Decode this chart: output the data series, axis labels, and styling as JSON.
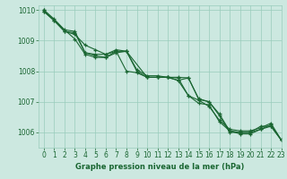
{
  "title": "Graphe pression niveau de la mer (hPa)",
  "xlim": [
    -0.5,
    23
  ],
  "ylim": [
    1005.5,
    1010.15
  ],
  "yticks": [
    1006,
    1007,
    1008,
    1009,
    1010
  ],
  "xticks": [
    0,
    1,
    2,
    3,
    4,
    5,
    6,
    7,
    8,
    9,
    10,
    11,
    12,
    13,
    14,
    15,
    16,
    17,
    18,
    19,
    20,
    21,
    22,
    23
  ],
  "bg_color": "#cce8e0",
  "grid_color": "#99ccbb",
  "line_color": "#1a6632",
  "line1_x": [
    0,
    1,
    2,
    3,
    4,
    5,
    6,
    7,
    8,
    9,
    10,
    11,
    12,
    13,
    14,
    15,
    16,
    17,
    18,
    19,
    20,
    21,
    22,
    23
  ],
  "line1_y": [
    1009.95,
    1009.65,
    1009.3,
    1009.25,
    1008.6,
    1008.5,
    1008.45,
    1008.65,
    1008.65,
    1008.0,
    1007.8,
    1007.8,
    1007.8,
    1007.8,
    1007.78,
    1007.1,
    1007.0,
    1006.6,
    1006.05,
    1006.0,
    1006.0,
    1006.2,
    1006.2,
    1005.75
  ],
  "line2_x": [
    0,
    1,
    2,
    3,
    4,
    5,
    6,
    7,
    8,
    9,
    10,
    11,
    12,
    13,
    14,
    15,
    16,
    17,
    18,
    19,
    20,
    21,
    22,
    23
  ],
  "line2_y": [
    1010.0,
    1009.65,
    1009.3,
    1009.2,
    1008.85,
    1008.7,
    1008.55,
    1008.65,
    1008.0,
    1007.95,
    1007.8,
    1007.8,
    1007.8,
    1007.7,
    1007.2,
    1006.95,
    1006.9,
    1006.35,
    1006.05,
    1005.95,
    1005.95,
    1006.1,
    1006.2,
    1005.75
  ],
  "line3_x": [
    0,
    1,
    2,
    3,
    4,
    5,
    6,
    7,
    8,
    9,
    10,
    11,
    12,
    13,
    14,
    15,
    16,
    17,
    18,
    19,
    20,
    21,
    22,
    23
  ],
  "line3_y": [
    1010.0,
    1009.7,
    1009.35,
    1009.3,
    1008.6,
    1008.55,
    1008.55,
    1008.7,
    1008.65,
    1008.05,
    1007.85,
    1007.85,
    1007.8,
    1007.78,
    1007.2,
    1007.05,
    1006.85,
    1006.4,
    1006.1,
    1006.05,
    1006.05,
    1006.15,
    1006.3,
    1005.75
  ],
  "line4_x": [
    0,
    3,
    4,
    5,
    6,
    7,
    8,
    10,
    11,
    12,
    13,
    14,
    15,
    16,
    17,
    18,
    19,
    20,
    21,
    22,
    23
  ],
  "line4_y": [
    1009.95,
    1009.05,
    1008.55,
    1008.45,
    1008.45,
    1008.6,
    1008.65,
    1007.8,
    1007.8,
    1007.8,
    1007.7,
    1007.78,
    1007.08,
    1007.0,
    1006.55,
    1006.0,
    1006.0,
    1006.0,
    1006.1,
    1006.25,
    1005.75
  ]
}
